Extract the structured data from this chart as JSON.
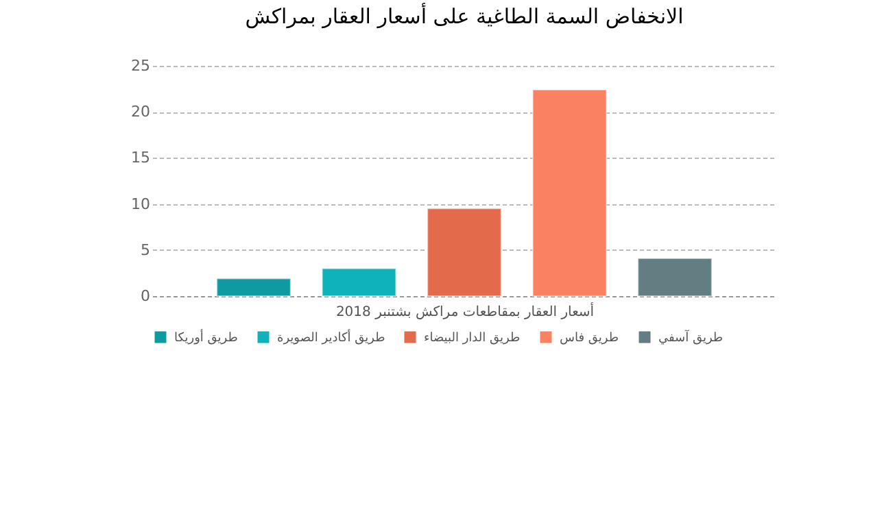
{
  "chart_data": {
    "type": "bar",
    "title": "الانخفاض السمة الطاغية على أسعار العقار بمراكش",
    "xlabel": "أسعار العقار بمقاطعات مراكش بشتنبر 2018",
    "categories": [
      null
    ],
    "series": [
      {
        "name": "طريق أوريكا",
        "color": "#0e9aa0",
        "values": [
          1.9
        ]
      },
      {
        "name": "طريق أكادير الصويرة",
        "color": "#0fb2bb",
        "values": [
          3.0
        ]
      },
      {
        "name": "طريق الدار البيضاء",
        "color": "#e46a4c",
        "values": [
          9.5
        ]
      },
      {
        "name": "طريق فاس",
        "color": "#fa8262",
        "values": [
          22.4
        ]
      },
      {
        "name": "طريق آسفي",
        "color": "#627e82",
        "values": [
          4.1
        ]
      }
    ],
    "ylim": [
      0,
      25
    ],
    "yticks": [
      0,
      5,
      10,
      15,
      20,
      25
    ],
    "grid": "y",
    "legend": "bottom"
  }
}
